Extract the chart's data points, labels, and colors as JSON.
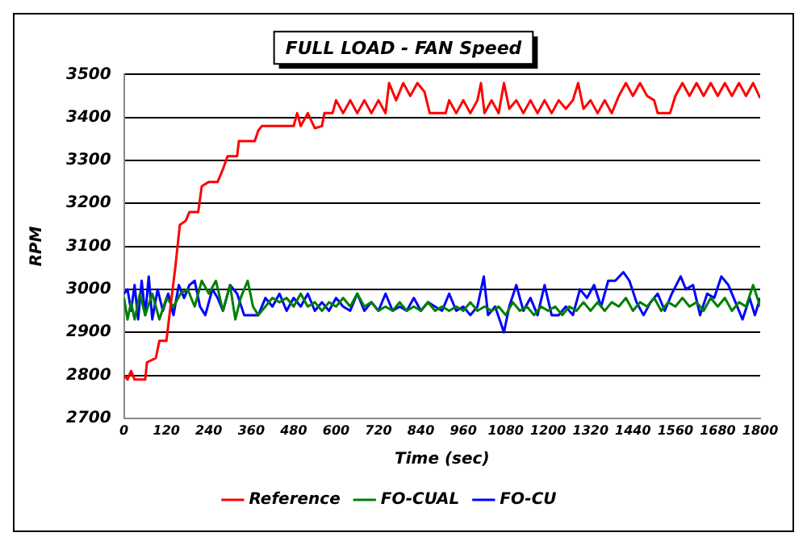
{
  "chart_data": {
    "type": "line",
    "title": "FULL LOAD - FAN Speed",
    "xlabel": "Time (sec)",
    "ylabel": "RPM",
    "xlim": [
      0,
      1800
    ],
    "xticks": [
      0,
      120,
      240,
      360,
      480,
      600,
      720,
      840,
      960,
      1080,
      1200,
      1320,
      1440,
      1560,
      1680,
      1800
    ],
    "ylim": [
      2700,
      3500
    ],
    "yticks": [
      2700,
      2800,
      2900,
      3000,
      3100,
      3200,
      3300,
      3400,
      3500
    ],
    "grid": "y",
    "legend": "bottom",
    "marker": "none",
    "line_style": "solid",
    "series": [
      {
        "name": "Reference",
        "color": "#ff0000",
        "x": [
          0,
          10,
          20,
          30,
          60,
          65,
          90,
          100,
          120,
          130,
          145,
          158,
          175,
          185,
          210,
          220,
          240,
          265,
          280,
          293,
          320,
          325,
          370,
          380,
          390,
          480,
          490,
          500,
          520,
          540,
          560,
          567,
          590,
          600,
          620,
          640,
          660,
          680,
          700,
          720,
          740,
          750,
          770,
          790,
          810,
          830,
          850,
          865,
          910,
          920,
          940,
          960,
          980,
          1000,
          1010,
          1020,
          1040,
          1060,
          1075,
          1090,
          1110,
          1130,
          1150,
          1170,
          1190,
          1210,
          1230,
          1250,
          1270,
          1285,
          1300,
          1320,
          1340,
          1360,
          1380,
          1400,
          1420,
          1440,
          1460,
          1480,
          1500,
          1510,
          1545,
          1560,
          1580,
          1600,
          1620,
          1640,
          1660,
          1680,
          1700,
          1720,
          1740,
          1760,
          1780,
          1800
        ],
        "values": [
          2800,
          2790,
          2810,
          2790,
          2790,
          2830,
          2840,
          2880,
          2880,
          2950,
          3050,
          3150,
          3160,
          3180,
          3180,
          3240,
          3250,
          3250,
          3280,
          3310,
          3310,
          3345,
          3345,
          3370,
          3380,
          3380,
          3410,
          3380,
          3410,
          3375,
          3380,
          3410,
          3410,
          3440,
          3410,
          3440,
          3410,
          3440,
          3410,
          3440,
          3410,
          3480,
          3440,
          3480,
          3450,
          3480,
          3460,
          3410,
          3410,
          3440,
          3410,
          3440,
          3410,
          3440,
          3480,
          3410,
          3440,
          3410,
          3480,
          3420,
          3440,
          3410,
          3440,
          3410,
          3440,
          3410,
          3440,
          3420,
          3440,
          3480,
          3420,
          3440,
          3410,
          3440,
          3410,
          3450,
          3480,
          3450,
          3480,
          3450,
          3440,
          3410,
          3410,
          3450,
          3480,
          3450,
          3480,
          3450,
          3480,
          3450,
          3480,
          3450,
          3480,
          3450,
          3480,
          3445
        ]
      },
      {
        "name": "FO-CUAL",
        "color": "#008000",
        "x": [
          0,
          10,
          20,
          30,
          45,
          60,
          80,
          100,
          120,
          140,
          160,
          180,
          200,
          220,
          240,
          260,
          280,
          300,
          315,
          330,
          350,
          365,
          380,
          400,
          420,
          440,
          460,
          480,
          500,
          520,
          540,
          560,
          580,
          600,
          620,
          640,
          660,
          680,
          700,
          720,
          740,
          760,
          780,
          800,
          820,
          840,
          860,
          880,
          900,
          920,
          940,
          960,
          980,
          1000,
          1020,
          1040,
          1060,
          1080,
          1100,
          1120,
          1140,
          1160,
          1180,
          1200,
          1220,
          1240,
          1260,
          1280,
          1300,
          1320,
          1340,
          1360,
          1380,
          1400,
          1420,
          1440,
          1460,
          1480,
          1500,
          1520,
          1540,
          1560,
          1580,
          1600,
          1620,
          1640,
          1660,
          1680,
          1700,
          1720,
          1740,
          1760,
          1780,
          1800
        ],
        "values": [
          2980,
          2930,
          2970,
          2930,
          2990,
          2940,
          2990,
          2930,
          2980,
          2960,
          2990,
          3000,
          2960,
          3020,
          2990,
          3020,
          2950,
          3010,
          2930,
          2980,
          3020,
          2960,
          2940,
          2960,
          2980,
          2970,
          2980,
          2960,
          2990,
          2960,
          2970,
          2950,
          2970,
          2960,
          2980,
          2960,
          2990,
          2960,
          2970,
          2950,
          2960,
          2950,
          2970,
          2950,
          2960,
          2950,
          2970,
          2950,
          2960,
          2950,
          2960,
          2950,
          2970,
          2950,
          2960,
          2950,
          2960,
          2940,
          2970,
          2950,
          2960,
          2940,
          2960,
          2950,
          2960,
          2940,
          2960,
          2950,
          2970,
          2950,
          2970,
          2950,
          2970,
          2960,
          2980,
          2950,
          2970,
          2960,
          2980,
          2950,
          2970,
          2960,
          2980,
          2960,
          2970,
          2950,
          2980,
          2960,
          2980,
          2950,
          2970,
          2960,
          3010,
          2960
        ]
      },
      {
        "name": "FO-CU",
        "color": "#0000ff",
        "x": [
          0,
          10,
          20,
          30,
          40,
          50,
          60,
          70,
          80,
          95,
          110,
          125,
          140,
          155,
          170,
          185,
          200,
          215,
          230,
          250,
          265,
          280,
          300,
          320,
          340,
          360,
          380,
          400,
          420,
          440,
          460,
          480,
          500,
          520,
          540,
          560,
          580,
          600,
          620,
          640,
          660,
          680,
          700,
          720,
          740,
          760,
          780,
          800,
          820,
          840,
          860,
          880,
          900,
          920,
          940,
          960,
          980,
          1000,
          1018,
          1030,
          1050,
          1075,
          1090,
          1110,
          1130,
          1150,
          1170,
          1190,
          1210,
          1230,
          1250,
          1270,
          1290,
          1310,
          1330,
          1350,
          1370,
          1390,
          1413,
          1430,
          1450,
          1470,
          1490,
          1510,
          1530,
          1550,
          1575,
          1590,
          1610,
          1630,
          1650,
          1670,
          1690,
          1710,
          1730,
          1750,
          1770,
          1785,
          1800
        ],
        "values": [
          2990,
          3000,
          2950,
          3010,
          2930,
          3020,
          2940,
          3030,
          2930,
          3000,
          2950,
          2990,
          2940,
          3010,
          2980,
          3010,
          3020,
          2960,
          2940,
          3000,
          2980,
          2950,
          3010,
          2990,
          2940,
          2940,
          2940,
          2980,
          2960,
          2990,
          2950,
          2980,
          2960,
          2990,
          2950,
          2970,
          2950,
          2980,
          2960,
          2950,
          2990,
          2950,
          2970,
          2950,
          2990,
          2950,
          2960,
          2950,
          2980,
          2950,
          2970,
          2960,
          2950,
          2990,
          2950,
          2960,
          2940,
          2960,
          3030,
          2940,
          2960,
          2900,
          2960,
          3010,
          2950,
          2980,
          2940,
          3010,
          2940,
          2940,
          2960,
          2940,
          3000,
          2980,
          3010,
          2960,
          3020,
          3020,
          3040,
          3020,
          2970,
          2940,
          2970,
          2990,
          2950,
          2990,
          3030,
          3000,
          3010,
          2940,
          2990,
          2980,
          3030,
          3010,
          2970,
          2930,
          2980,
          2940,
          2980
        ]
      }
    ]
  }
}
